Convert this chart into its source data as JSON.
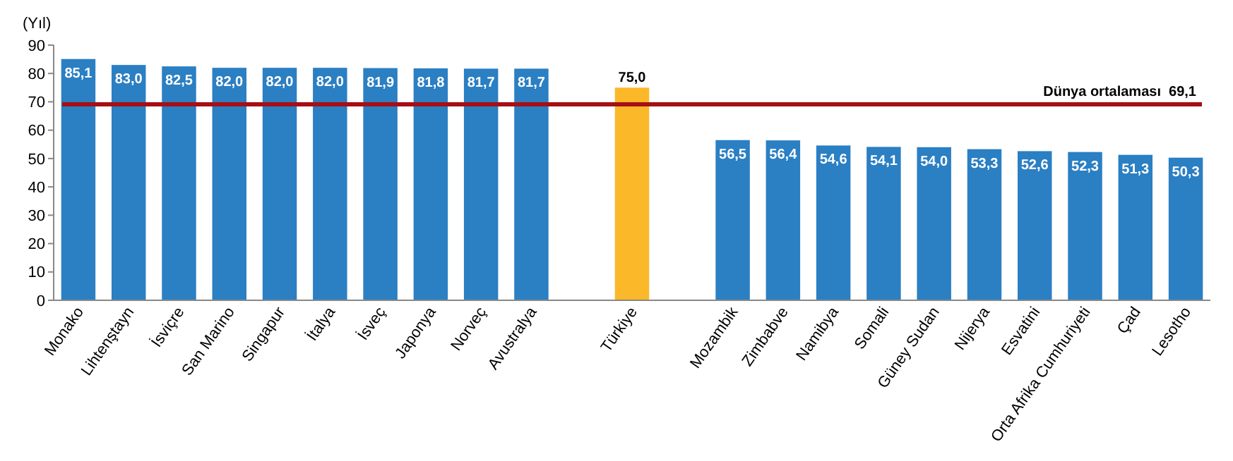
{
  "chart_data": {
    "type": "bar",
    "ylabel": "(Yıl)",
    "categories": [
      "Monako",
      "Lihtenştayn",
      "İsviçre",
      "San Marino",
      "Singapur",
      "İtalya",
      "İsveç",
      "Japonya",
      "Norveç",
      "Avustralya",
      null,
      "Türkiye",
      null,
      "Mozambik",
      "Zimbabve",
      "Namibya",
      "Somali",
      "Güney Sudan",
      "Nijerya",
      "Esvatini",
      "Orta Afrika Cumhuriyeti",
      "Çad",
      "Lesotho"
    ],
    "values": [
      85.1,
      83.0,
      82.5,
      82.0,
      82.0,
      82.0,
      81.9,
      81.8,
      81.7,
      81.7,
      null,
      75.0,
      null,
      56.5,
      56.4,
      54.6,
      54.1,
      54.0,
      53.3,
      52.6,
      52.3,
      51.3,
      50.3
    ],
    "value_labels": [
      "85,1",
      "83,0",
      "82,5",
      "82,0",
      "82,0",
      "82,0",
      "81,9",
      "81,8",
      "81,7",
      "81,7",
      null,
      "75,0",
      null,
      "56,5",
      "56,4",
      "54,6",
      "54,1",
      "54,0",
      "53,3",
      "52,6",
      "52,3",
      "51,3",
      "50,3"
    ],
    "colors": [
      "#2b7fc3",
      "#2b7fc3",
      "#2b7fc3",
      "#2b7fc3",
      "#2b7fc3",
      "#2b7fc3",
      "#2b7fc3",
      "#2b7fc3",
      "#2b7fc3",
      "#2b7fc3",
      null,
      "#fbb829",
      null,
      "#2b7fc3",
      "#2b7fc3",
      "#2b7fc3",
      "#2b7fc3",
      "#2b7fc3",
      "#2b7fc3",
      "#2b7fc3",
      "#2b7fc3",
      "#2b7fc3",
      "#2b7fc3"
    ],
    "ylim": [
      0,
      90
    ],
    "yticks": [
      0,
      10,
      20,
      30,
      40,
      50,
      60,
      70,
      80,
      90
    ],
    "ref_lines": [
      {
        "axis": "y",
        "value": 69.1,
        "label": "Dünya ortalaması  69,1",
        "color": "#a50f15"
      }
    ],
    "grid": false
  }
}
